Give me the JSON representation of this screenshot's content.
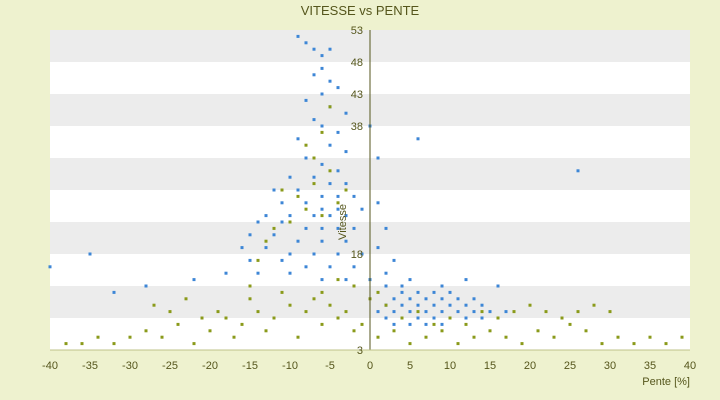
{
  "chart_data": {
    "type": "scatter",
    "title": "VITESSE vs PENTE",
    "xlabel": "Pente [%]",
    "ylabel": "Vitesse",
    "xlim": [
      -40,
      40
    ],
    "ylim": [
      3,
      53
    ],
    "x_ticks": [
      -40,
      -35,
      -30,
      -25,
      -20,
      -15,
      -10,
      -5,
      0,
      5,
      10,
      15,
      20,
      25,
      30,
      35,
      40
    ],
    "y_ticks": [
      3,
      8,
      13,
      18,
      23,
      28,
      33,
      38,
      43,
      48,
      53
    ],
    "y_tick_labels": [
      "3",
      "",
      "",
      "18",
      "",
      "",
      "",
      "38",
      "43",
      "48",
      "53"
    ],
    "grid": true,
    "legend": "none",
    "colors": {
      "series_a": "#3d86d6",
      "series_b": "#8a9a1a",
      "band": "#ececec",
      "axis": "#55561c"
    },
    "series": [
      {
        "points": [
          [
            -9,
            52
          ],
          [
            -8,
            51
          ],
          [
            -7,
            50
          ],
          [
            -6,
            49
          ],
          [
            -5,
            50
          ],
          [
            -6,
            47
          ],
          [
            -7,
            46
          ],
          [
            -5,
            45
          ],
          [
            -4,
            44
          ],
          [
            -6,
            43
          ],
          [
            -8,
            42
          ],
          [
            -5,
            41
          ],
          [
            -3,
            40
          ],
          [
            -7,
            39
          ],
          [
            -6,
            38
          ],
          [
            -4,
            37
          ],
          [
            -9,
            36
          ],
          [
            -5,
            35
          ],
          [
            -3,
            34
          ],
          [
            -8,
            33
          ],
          [
            -6,
            32
          ],
          [
            -4,
            31
          ],
          [
            -10,
            30
          ],
          [
            -7,
            30
          ],
          [
            -5,
            29
          ],
          [
            -3,
            29
          ],
          [
            -12,
            28
          ],
          [
            -9,
            28
          ],
          [
            -6,
            27
          ],
          [
            -4,
            27
          ],
          [
            -2,
            27
          ],
          [
            -11,
            26
          ],
          [
            -8,
            26
          ],
          [
            -6,
            25
          ],
          [
            -4,
            25
          ],
          [
            -1,
            25
          ],
          [
            -13,
            24
          ],
          [
            -10,
            24
          ],
          [
            -7,
            24
          ],
          [
            -5,
            24
          ],
          [
            -3,
            24
          ],
          [
            -14,
            23
          ],
          [
            -11,
            23
          ],
          [
            -8,
            22
          ],
          [
            -6,
            22
          ],
          [
            -4,
            22
          ],
          [
            -2,
            22
          ],
          [
            -15,
            21
          ],
          [
            -12,
            21
          ],
          [
            -9,
            20
          ],
          [
            -6,
            20
          ],
          [
            -3,
            20
          ],
          [
            -16,
            19
          ],
          [
            -13,
            19
          ],
          [
            -10,
            18
          ],
          [
            -7,
            18
          ],
          [
            -4,
            18
          ],
          [
            -1,
            18
          ],
          [
            -15,
            17
          ],
          [
            -11,
            17
          ],
          [
            -8,
            16
          ],
          [
            -5,
            16
          ],
          [
            -2,
            16
          ],
          [
            -14,
            15
          ],
          [
            -10,
            15
          ],
          [
            -6,
            14
          ],
          [
            -3,
            14
          ],
          [
            0,
            14
          ],
          [
            2,
            13
          ],
          [
            4,
            13
          ],
          [
            6,
            12
          ],
          [
            8,
            12
          ],
          [
            10,
            12
          ],
          [
            3,
            11
          ],
          [
            5,
            11
          ],
          [
            7,
            11
          ],
          [
            9,
            11
          ],
          [
            11,
            11
          ],
          [
            13,
            11
          ],
          [
            2,
            10
          ],
          [
            4,
            10
          ],
          [
            6,
            10
          ],
          [
            8,
            10
          ],
          [
            10,
            10
          ],
          [
            12,
            10
          ],
          [
            14,
            10
          ],
          [
            1,
            9
          ],
          [
            3,
            9
          ],
          [
            5,
            9
          ],
          [
            7,
            9
          ],
          [
            9,
            9
          ],
          [
            11,
            9
          ],
          [
            13,
            9
          ],
          [
            15,
            9
          ],
          [
            17,
            9
          ],
          [
            2,
            8
          ],
          [
            4,
            8
          ],
          [
            6,
            8
          ],
          [
            8,
            8
          ],
          [
            10,
            8
          ],
          [
            12,
            8
          ],
          [
            14,
            8
          ],
          [
            3,
            7
          ],
          [
            5,
            7
          ],
          [
            7,
            7
          ],
          [
            9,
            7
          ],
          [
            1,
            26
          ],
          [
            2,
            22
          ],
          [
            1,
            19
          ],
          [
            3,
            17
          ],
          [
            2,
            15
          ],
          [
            5,
            14
          ],
          [
            4,
            12
          ],
          [
            9,
            13
          ],
          [
            12,
            14
          ],
          [
            16,
            13
          ],
          [
            6,
            36
          ],
          [
            26,
            31
          ],
          [
            -35,
            18
          ],
          [
            -40,
            16
          ],
          [
            -32,
            12
          ],
          [
            -28,
            13
          ],
          [
            -22,
            14
          ],
          [
            -18,
            15
          ],
          [
            0,
            38
          ],
          [
            1,
            33
          ]
        ]
      },
      {
        "points": [
          [
            -38,
            4
          ],
          [
            -36,
            4
          ],
          [
            -34,
            5
          ],
          [
            -32,
            4
          ],
          [
            -30,
            5
          ],
          [
            -28,
            6
          ],
          [
            -26,
            5
          ],
          [
            -24,
            7
          ],
          [
            -22,
            4
          ],
          [
            -20,
            6
          ],
          [
            -18,
            8
          ],
          [
            -16,
            7
          ],
          [
            -14,
            9
          ],
          [
            -12,
            8
          ],
          [
            -10,
            10
          ],
          [
            -8,
            9
          ],
          [
            -6,
            7
          ],
          [
            -4,
            8
          ],
          [
            -2,
            6
          ],
          [
            -17,
            5
          ],
          [
            -15,
            11
          ],
          [
            -13,
            6
          ],
          [
            -11,
            12
          ],
          [
            -9,
            5
          ],
          [
            -7,
            11
          ],
          [
            -5,
            10
          ],
          [
            -3,
            9
          ],
          [
            -1,
            7
          ],
          [
            -19,
            9
          ],
          [
            -21,
            8
          ],
          [
            -25,
            9
          ],
          [
            -27,
            10
          ],
          [
            -23,
            11
          ],
          [
            -9,
            27
          ],
          [
            -8,
            25
          ],
          [
            -7,
            29
          ],
          [
            -6,
            24
          ],
          [
            -5,
            31
          ],
          [
            -4,
            26
          ],
          [
            -10,
            23
          ],
          [
            -11,
            28
          ],
          [
            -12,
            22
          ],
          [
            -13,
            20
          ],
          [
            -7,
            33
          ],
          [
            -6,
            37
          ],
          [
            -5,
            41
          ],
          [
            -8,
            35
          ],
          [
            -3,
            28
          ],
          [
            -14,
            17
          ],
          [
            -15,
            13
          ],
          [
            1,
            5
          ],
          [
            3,
            6
          ],
          [
            5,
            4
          ],
          [
            7,
            5
          ],
          [
            9,
            6
          ],
          [
            11,
            4
          ],
          [
            13,
            5
          ],
          [
            15,
            6
          ],
          [
            17,
            5
          ],
          [
            19,
            4
          ],
          [
            21,
            6
          ],
          [
            23,
            5
          ],
          [
            25,
            7
          ],
          [
            27,
            6
          ],
          [
            29,
            4
          ],
          [
            31,
            5
          ],
          [
            33,
            4
          ],
          [
            35,
            5
          ],
          [
            37,
            4
          ],
          [
            39,
            5
          ],
          [
            4,
            8
          ],
          [
            6,
            9
          ],
          [
            8,
            7
          ],
          [
            10,
            8
          ],
          [
            12,
            7
          ],
          [
            14,
            9
          ],
          [
            16,
            8
          ],
          [
            18,
            9
          ],
          [
            20,
            10
          ],
          [
            22,
            9
          ],
          [
            24,
            8
          ],
          [
            26,
            9
          ],
          [
            28,
            10
          ],
          [
            30,
            9
          ],
          [
            2,
            10
          ],
          [
            1,
            12
          ],
          [
            0,
            11
          ],
          [
            -2,
            13
          ],
          [
            -4,
            14
          ],
          [
            -6,
            12
          ]
        ]
      }
    ]
  }
}
